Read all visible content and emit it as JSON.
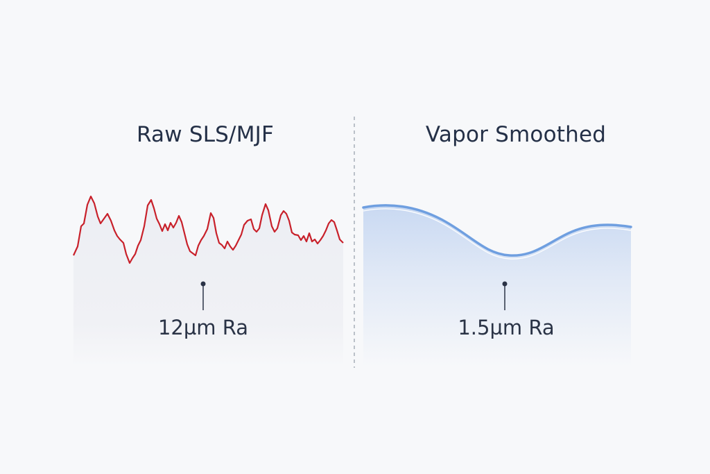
{
  "panels": [
    {
      "title": "Raw SLS/MJF",
      "readout": "12µm Ra",
      "line_color": "#c8202a",
      "surface": "rough"
    },
    {
      "title": "Vapor Smoothed",
      "readout": "1.5µm Ra",
      "line_color": "#6f9fe0",
      "fill_color": "#c9d9f2",
      "surface": "smooth"
    }
  ],
  "colors": {
    "background": "#f7f8fa",
    "divider": "#9aa2ad",
    "text": "#243047"
  }
}
